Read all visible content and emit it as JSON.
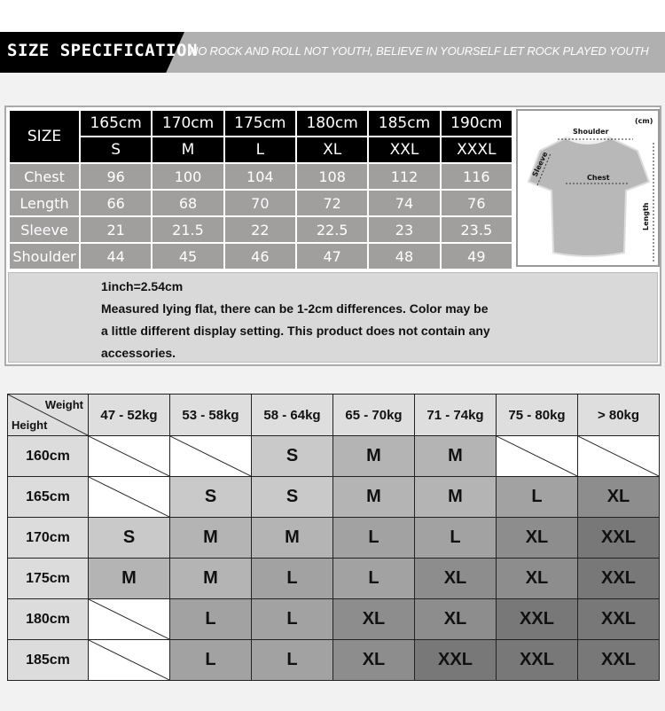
{
  "banner": {
    "title": "SIZE SPECIFICATION",
    "slogan": "NO ROCK AND ROLL NOT YOUTH, BELIEVE IN YOURSELF LET ROCK PLAYED YOUTH"
  },
  "spec": {
    "size_label": "SIZE",
    "heights": [
      "165cm",
      "170cm",
      "175cm",
      "180cm",
      "185cm",
      "190cm"
    ],
    "sizes": [
      "S",
      "M",
      "L",
      "XL",
      "XXL",
      "XXXL"
    ],
    "rows": [
      {
        "label": "Chest",
        "values": [
          "96",
          "100",
          "104",
          "108",
          "112",
          "116"
        ]
      },
      {
        "label": "Length",
        "values": [
          "66",
          "68",
          "70",
          "72",
          "74",
          "76"
        ]
      },
      {
        "label": "Sleeve",
        "values": [
          "21",
          "21.5",
          "22",
          "22.5",
          "23",
          "23.5"
        ]
      },
      {
        "label": "Shoulder",
        "values": [
          "44",
          "45",
          "46",
          "47",
          "48",
          "49"
        ]
      }
    ]
  },
  "diagram": {
    "unit": "(cm)",
    "shoulder": "Shoulder",
    "chest": "Chest",
    "sleeve": "Sleeve",
    "length": "Length"
  },
  "note": {
    "line1": "1inch=2.54cm",
    "line2": "Measured lying flat, there can be 1-2cm differences. Color may be",
    "line3": "a little different display setting. This product does not contain any",
    "line4": "accessories."
  },
  "grid": {
    "corner_weight": "Weight",
    "corner_height": "Height",
    "weights": [
      "47 - 52kg",
      "53 - 58kg",
      "58 - 64kg",
      "65 - 70kg",
      "71 - 74kg",
      "75 - 80kg",
      "> 80kg"
    ],
    "rows": [
      {
        "height": "160cm",
        "cells": [
          "",
          "",
          "S",
          "M",
          "M",
          "",
          ""
        ]
      },
      {
        "height": "165cm",
        "cells": [
          "",
          "S",
          "S",
          "M",
          "M",
          "L",
          "XL"
        ]
      },
      {
        "height": "170cm",
        "cells": [
          "S",
          "M",
          "M",
          "L",
          "L",
          "XL",
          "XXL"
        ]
      },
      {
        "height": "175cm",
        "cells": [
          "M",
          "M",
          "L",
          "L",
          "XL",
          "XL",
          "XXL"
        ]
      },
      {
        "height": "180cm",
        "cells": [
          "",
          "L",
          "L",
          "XL",
          "XL",
          "XXL",
          "XXL"
        ]
      },
      {
        "height": "185cm",
        "cells": [
          "",
          "L",
          "L",
          "XL",
          "XXL",
          "XXL",
          "XXL"
        ]
      }
    ],
    "colors": {
      "S": "#c9c9c9",
      "M": "#b4b4b4",
      "L": "#a2a2a2",
      "XL": "#8d8d8d",
      "XXL": "#787878"
    }
  }
}
